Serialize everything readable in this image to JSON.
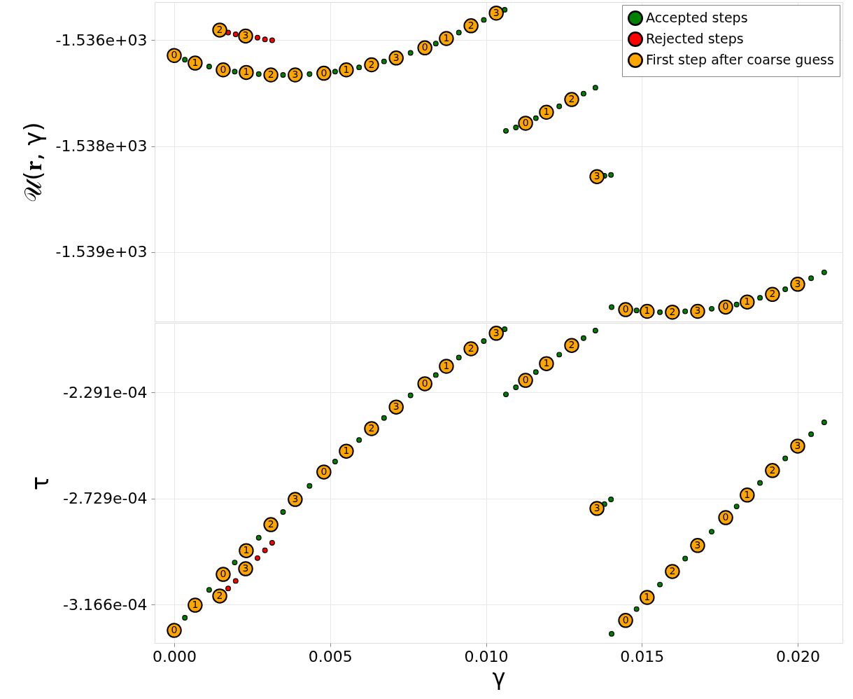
{
  "chart_data": [
    {
      "type": "scatter",
      "ylabel": "𝒰(𝐫, γ)",
      "marker": "circle",
      "grid": true,
      "legend": "top right",
      "tick_labels": "y",
      "xlim": [
        -0.000629,
        0.021437
      ],
      "xticks": [
        0,
        0.005,
        0.01,
        0.015,
        0.02
      ],
      "ylim": [
        -1539.57,
        -1535.8
      ],
      "yticks": [
        {
          "value": -1536.25,
          "label": "-1.536e+03"
        },
        {
          "value": -1537.5,
          "label": "-1.538e+03"
        },
        {
          "value": -1538.75,
          "label": "-1.539e+03"
        }
      ],
      "series": [
        {
          "name": "Accepted steps",
          "color": "#008000",
          "x": [
            0.00034,
            0.00112,
            0.00194,
            0.00271,
            0.00349,
            0.00434,
            0.00516,
            0.00593,
            0.00673,
            0.00758,
            0.00839,
            0.00913,
            0.00993,
            0.0106,
            0.01064,
            0.01096,
            0.0116,
            0.01235,
            0.01313,
            0.01351,
            0.0138,
            0.01401,
            0.01403,
            0.01483,
            0.01558,
            0.01639,
            0.01724,
            0.01804,
            0.01879,
            0.0196,
            0.02043,
            0.02085
          ],
          "values": [
            -1536.48,
            -1536.56,
            -1536.62,
            -1536.65,
            -1536.66,
            -1536.65,
            -1536.62,
            -1536.57,
            -1536.5,
            -1536.4,
            -1536.29,
            -1536.16,
            -1536.01,
            -1535.89,
            -1537.32,
            -1537.28,
            -1537.17,
            -1537.03,
            -1536.88,
            -1536.81,
            -1537.85,
            -1537.84,
            -1539.4,
            -1539.44,
            -1539.46,
            -1539.45,
            -1539.42,
            -1539.37,
            -1539.29,
            -1539.19,
            -1539.06,
            -1538.99
          ]
        },
        {
          "name": "Rejected steps",
          "color": "#ff0000",
          "x": [
            0.00173,
            0.00197,
            0.00267,
            0.00291,
            0.00314
          ],
          "values": [
            -1536.16,
            -1536.18,
            -1536.22,
            -1536.24,
            -1536.25
          ]
        },
        {
          "name": "First step after coarse guess",
          "color": "#ffa500",
          "x": [
            0,
            0.00067,
            0.00157,
            0.00231,
            0.0031,
            0.00388,
            0.0048,
            0.00552,
            0.00633,
            0.00712,
            0.00804,
            0.00873,
            0.00952,
            0.01033,
            0.00146,
            0.00229,
            0.01127,
            0.01194,
            0.01275,
            0.01356,
            0.01448,
            0.01517,
            0.01598,
            0.01679,
            0.01769,
            0.01838,
            0.01919,
            0.02
          ],
          "values": [
            -1536.43,
            -1536.52,
            -1536.6,
            -1536.63,
            -1536.66,
            -1536.66,
            -1536.64,
            -1536.6,
            -1536.54,
            -1536.46,
            -1536.34,
            -1536.23,
            -1536.08,
            -1535.93,
            -1536.13,
            -1536.2,
            -1537.23,
            -1537.1,
            -1536.95,
            -1537.86,
            -1539.43,
            -1539.45,
            -1539.46,
            -1539.45,
            -1539.4,
            -1539.34,
            -1539.25,
            -1539.13
          ]
        }
      ],
      "annotations": [
        {
          "text": "0",
          "x": 0,
          "y": -1536.43
        },
        {
          "text": "1",
          "x": 0.00067,
          "y": -1536.52
        },
        {
          "text": "0",
          "x": 0.00157,
          "y": -1536.6
        },
        {
          "text": "1",
          "x": 0.00231,
          "y": -1536.63
        },
        {
          "text": "2",
          "x": 0.0031,
          "y": -1536.66
        },
        {
          "text": "3",
          "x": 0.00388,
          "y": -1536.66
        },
        {
          "text": "0",
          "x": 0.0048,
          "y": -1536.64
        },
        {
          "text": "1",
          "x": 0.00552,
          "y": -1536.6
        },
        {
          "text": "2",
          "x": 0.00633,
          "y": -1536.54
        },
        {
          "text": "3",
          "x": 0.00712,
          "y": -1536.46
        },
        {
          "text": "0",
          "x": 0.00804,
          "y": -1536.34
        },
        {
          "text": "1",
          "x": 0.00873,
          "y": -1536.23
        },
        {
          "text": "2",
          "x": 0.00952,
          "y": -1536.08
        },
        {
          "text": "3",
          "x": 0.01033,
          "y": -1535.93
        },
        {
          "text": "2",
          "x": 0.00146,
          "y": -1536.13
        },
        {
          "text": "3",
          "x": 0.00229,
          "y": -1536.2
        },
        {
          "text": "0",
          "x": 0.01127,
          "y": -1537.23
        },
        {
          "text": "1",
          "x": 0.01194,
          "y": -1537.1
        },
        {
          "text": "2",
          "x": 0.01275,
          "y": -1536.95
        },
        {
          "text": "3",
          "x": 0.01356,
          "y": -1537.86
        },
        {
          "text": "0",
          "x": 0.01448,
          "y": -1539.43
        },
        {
          "text": "1",
          "x": 0.01517,
          "y": -1539.45
        },
        {
          "text": "2",
          "x": 0.01598,
          "y": -1539.46
        },
        {
          "text": "3",
          "x": 0.01679,
          "y": -1539.45
        },
        {
          "text": "0",
          "x": 0.01769,
          "y": -1539.4
        },
        {
          "text": "1",
          "x": 0.01838,
          "y": -1539.34
        },
        {
          "text": "2",
          "x": 0.01919,
          "y": -1539.25
        },
        {
          "text": "3",
          "x": 0.02,
          "y": -1539.13
        }
      ]
    },
    {
      "type": "scatter",
      "xlabel": "γ",
      "ylabel": "τ",
      "marker": "circle",
      "grid": true,
      "xlim": [
        -0.000629,
        0.021437
      ],
      "xticks": [
        {
          "value": 0,
          "label": "0.000"
        },
        {
          "value": 0.005,
          "label": "0.005"
        },
        {
          "value": 0.01,
          "label": "0.010"
        },
        {
          "value": 0.015,
          "label": "0.015"
        },
        {
          "value": 0.02,
          "label": "0.020"
        }
      ],
      "ylim": [
        -0.00033248,
        -0.00020051
      ],
      "yticks": [
        {
          "value": -0.0002291,
          "label": "-2.291e-04"
        },
        {
          "value": -0.0002729,
          "label": "-2.729e-04"
        },
        {
          "value": -0.0003166,
          "label": "-3.166e-04"
        }
      ],
      "series": [
        {
          "color": "#008000",
          "x": [
            0.00034,
            0.00112,
            0.00194,
            0.00271,
            0.00349,
            0.00434,
            0.00516,
            0.00593,
            0.00673,
            0.00758,
            0.00839,
            0.00913,
            0.00993,
            0.0106,
            0.01064,
            0.01096,
            0.0116,
            0.01235,
            0.01313,
            0.01351,
            0.0138,
            0.01401,
            0.01403,
            0.01483,
            0.01558,
            0.01639,
            0.01724,
            0.01804,
            0.01879,
            0.0196,
            0.02043,
            0.02085
          ],
          "values": [
            -0.0003221,
            -0.0003106,
            -0.0002993,
            -0.0002891,
            -0.0002785,
            -0.0002677,
            -0.0002577,
            -0.0002488,
            -0.0002397,
            -0.0002304,
            -0.000222,
            -0.0002148,
            -0.000208,
            -0.0002031,
            -0.00023,
            -0.0002271,
            -0.0002208,
            -0.0002136,
            -0.0002068,
            -0.0002037,
            -0.0002752,
            -0.0002733,
            -0.0003287,
            -0.0003185,
            -0.0003084,
            -0.0002977,
            -0.0002866,
            -0.0002762,
            -0.0002665,
            -0.0002564,
            -0.0002464,
            -0.0002415
          ]
        },
        {
          "color": "#ff0000",
          "x": [
            0.00173,
            0.00197,
            0.00267,
            0.00291,
            0.00314
          ],
          "values": [
            -0.00031,
            -0.0003069,
            -0.0002975,
            -0.0002943,
            -0.0002912
          ]
        },
        {
          "color": "#ffa500",
          "x": [
            0,
            0.00067,
            0.00157,
            0.00231,
            0.0031,
            0.00388,
            0.0048,
            0.00552,
            0.00633,
            0.00712,
            0.00804,
            0.00873,
            0.00952,
            0.01033,
            0.00146,
            0.00229,
            0.01127,
            0.01194,
            0.01275,
            0.01356,
            0.01448,
            0.01517,
            0.01598,
            0.01679,
            0.01769,
            0.01838,
            0.01919,
            0.02
          ],
          "values": [
            -0.0003273,
            -0.0003169,
            -0.0003042,
            -0.0002944,
            -0.0002837,
            -0.0002733,
            -0.000262,
            -0.0002534,
            -0.0002441,
            -0.0002352,
            -0.0002256,
            -0.0002184,
            -0.0002112,
            -0.0002048,
            -0.0003131,
            -0.0003019,
            -0.0002242,
            -0.0002173,
            -0.0002098,
            -0.000277,
            -0.0003232,
            -0.0003137,
            -0.000303,
            -0.0002923,
            -0.0002808,
            -0.0002715,
            -0.0002614,
            -0.0002513
          ]
        }
      ],
      "annotations": [
        {
          "text": "0",
          "x": 0,
          "y": -0.0003273
        },
        {
          "text": "1",
          "x": 0.00067,
          "y": -0.0003169
        },
        {
          "text": "0",
          "x": 0.00157,
          "y": -0.0003042
        },
        {
          "text": "1",
          "x": 0.00231,
          "y": -0.0002944
        },
        {
          "text": "2",
          "x": 0.0031,
          "y": -0.0002837
        },
        {
          "text": "3",
          "x": 0.00388,
          "y": -0.0002733
        },
        {
          "text": "0",
          "x": 0.0048,
          "y": -0.000262
        },
        {
          "text": "1",
          "x": 0.00552,
          "y": -0.0002534
        },
        {
          "text": "2",
          "x": 0.00633,
          "y": -0.0002441
        },
        {
          "text": "3",
          "x": 0.00712,
          "y": -0.0002352
        },
        {
          "text": "0",
          "x": 0.00804,
          "y": -0.0002256
        },
        {
          "text": "1",
          "x": 0.00873,
          "y": -0.0002184
        },
        {
          "text": "2",
          "x": 0.00952,
          "y": -0.0002112
        },
        {
          "text": "3",
          "x": 0.01033,
          "y": -0.0002048
        },
        {
          "text": "2",
          "x": 0.00146,
          "y": -0.0003131
        },
        {
          "text": "3",
          "x": 0.00229,
          "y": -0.0003019
        },
        {
          "text": "0",
          "x": 0.01127,
          "y": -0.0002242
        },
        {
          "text": "1",
          "x": 0.01194,
          "y": -0.0002173
        },
        {
          "text": "2",
          "x": 0.01275,
          "y": -0.0002098
        },
        {
          "text": "3",
          "x": 0.01356,
          "y": -0.000277
        },
        {
          "text": "0",
          "x": 0.01448,
          "y": -0.0003232
        },
        {
          "text": "1",
          "x": 0.01517,
          "y": -0.0003137
        },
        {
          "text": "2",
          "x": 0.01598,
          "y": -0.000303
        },
        {
          "text": "3",
          "x": 0.01679,
          "y": -0.0002923
        },
        {
          "text": "0",
          "x": 0.01769,
          "y": -0.0002808
        },
        {
          "text": "1",
          "x": 0.01838,
          "y": -0.0002715
        },
        {
          "text": "2",
          "x": 0.01919,
          "y": -0.0002614
        },
        {
          "text": "3",
          "x": 0.02,
          "y": -0.0002513
        }
      ]
    }
  ]
}
